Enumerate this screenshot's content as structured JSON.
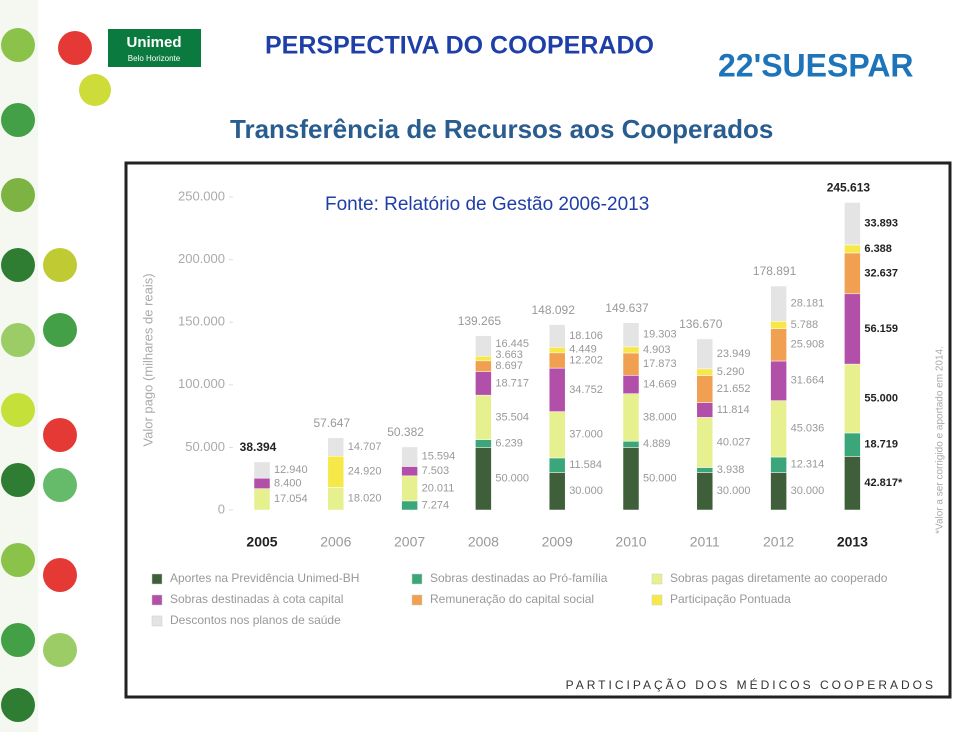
{
  "slide": {
    "title": "PERSPECTIVA DO COOPERADO",
    "subtitle": "Transferência de Recursos aos Cooperados",
    "logo_left": "Unimed",
    "logo_left_sub": "Belo Horizonte",
    "logo_right": "22'SUESPAR",
    "footer": "PARTICIPAÇÃO DOS MÉDICOS COOPERADOS"
  },
  "chart_data": {
    "type": "stacked_bar",
    "title": "Fonte: Relatório de Gestão 2006-2013",
    "y_label": "Valor pago (milhares de reais)",
    "note": "*Valor a ser corrigido e aportado em 2014.",
    "categories": [
      "2005",
      "2006",
      "2007",
      "2008",
      "2009",
      "2010",
      "2011",
      "2012",
      "2013"
    ],
    "ylim": [
      0,
      250000
    ],
    "yticks": [
      0,
      {
        "value": 50000,
        "label": "50.000"
      },
      {
        "value": 100000,
        "label": "100.000"
      },
      {
        "value": 150000,
        "label": "150.000"
      },
      {
        "value": 200000,
        "label": "200.000"
      },
      {
        "value": 250000,
        "label": "250.000"
      }
    ],
    "series": [
      {
        "name": "Aportes na Previdência Unimed-BH",
        "color": "#3f5e3a",
        "values": [
          null,
          null,
          null,
          50000,
          30000,
          50000,
          30000,
          30000,
          42817
        ],
        "value_labels": [
          null,
          null,
          null,
          "50.000",
          "30.000",
          "50.000",
          "30.000",
          "30.000",
          "42.817*"
        ]
      },
      {
        "name": "Sobras destinadas ao Pró-família",
        "color": "#3aa67a",
        "values": [
          null,
          null,
          7274,
          6239,
          11584,
          4889,
          3938,
          12314,
          18719
        ],
        "value_labels": [
          null,
          null,
          "7.274",
          "6.239",
          "11.584",
          "4.889",
          "3.938",
          "12.314",
          "18.719"
        ]
      },
      {
        "name": "Sobras pagas diretamente ao cooperado",
        "color": "#e6f08e",
        "values": [
          17054,
          18020,
          20011,
          35504,
          37000,
          38000,
          40027,
          45036,
          55000
        ],
        "value_labels": [
          "17.054",
          "18.020",
          "20.011",
          "35.504",
          "37.000",
          "38.000",
          "40.027",
          "45.036",
          "55.000"
        ]
      },
      {
        "name": "Sobras destinadas à cota capital",
        "color": "#b24fa8",
        "values": [
          8400,
          null,
          7503,
          18717,
          34752,
          14669,
          11814,
          31664,
          56159
        ],
        "value_labels": [
          "8.400",
          null,
          "7.503",
          "18.717",
          "34.752",
          "14.669",
          "11.814",
          "31.664",
          "56.159"
        ]
      },
      {
        "name": "Remuneração do capital social",
        "color": "#f0a050",
        "values": [
          null,
          null,
          null,
          8697,
          12202,
          17873,
          21652,
          25908,
          32637
        ],
        "value_labels": [
          null,
          null,
          null,
          "8.697",
          "12.202",
          "17.873",
          "21.652",
          "25.908",
          "32.637"
        ]
      },
      {
        "name": "Participação Pontuada",
        "color": "#f7e84a",
        "values": [
          null,
          24920,
          null,
          3663,
          4449,
          4903,
          5290,
          5788,
          6388
        ],
        "value_labels": [
          null,
          "24.920",
          null,
          "3.663",
          "4.449",
          "4.903",
          "5.290",
          "5.788",
          "6.388"
        ]
      },
      {
        "name": "Descontos nos planos de saúde",
        "color": "#e4e4e4",
        "values": [
          12940,
          14707,
          15594,
          16445,
          18106,
          19303,
          23949,
          28181,
          33893
        ],
        "value_labels": [
          "12.940",
          "14.707",
          "15.594",
          "16.445",
          "18.106",
          "19.303",
          "23.949",
          "28.181",
          "33.893"
        ]
      }
    ],
    "totals": {
      "values": [
        38394,
        57647,
        50382,
        139265,
        148092,
        149637,
        136670,
        178891,
        245613
      ],
      "value_labels": [
        "38.394",
        "57.647",
        "50.382",
        "139.265",
        "148.092",
        "149.637",
        "136.670",
        "178.891",
        "245.613"
      ]
    }
  }
}
